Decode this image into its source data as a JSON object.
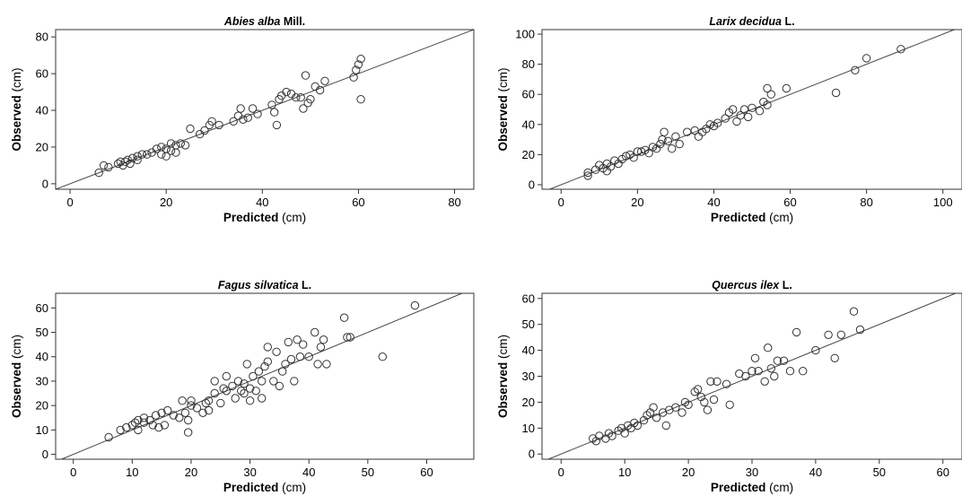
{
  "figure": {
    "panels": [
      {
        "title_species": "Abies alba",
        "title_authority": "Mill.",
        "xlabel_bold": "Predicted",
        "xlabel_unit": "(cm)",
        "ylabel_bold": "Observed",
        "ylabel_unit": "(cm)"
      },
      {
        "title_species": "Larix decidua",
        "title_authority": "L.",
        "xlabel_bold": "Predicted",
        "xlabel_unit": "(cm)",
        "ylabel_bold": "Observed",
        "ylabel_unit": "(cm)"
      },
      {
        "title_species": "Fagus silvatica",
        "title_authority": "L.",
        "xlabel_bold": "Predicted",
        "xlabel_unit": "(cm)",
        "ylabel_bold": "Observed",
        "ylabel_unit": "(cm)"
      },
      {
        "title_species": "Quercus ilex",
        "title_authority": "L.",
        "xlabel_bold": "Predicted",
        "xlabel_unit": "(cm)",
        "ylabel_bold": "Observed",
        "ylabel_unit": "(cm)"
      }
    ]
  },
  "chart_data": [
    {
      "type": "scatter",
      "title": "Abies alba Mill.",
      "xlabel": "Predicted (cm)",
      "ylabel": "Observed (cm)",
      "xlim": [
        -3,
        84
      ],
      "ylim": [
        -3,
        84
      ],
      "xticks": [
        0,
        20,
        40,
        60,
        80
      ],
      "yticks": [
        0,
        20,
        40,
        60,
        80
      ],
      "reference_line": "y = x",
      "grid": false,
      "points": [
        [
          6,
          6
        ],
        [
          7,
          10
        ],
        [
          8,
          9
        ],
        [
          10,
          11
        ],
        [
          10.5,
          12
        ],
        [
          11,
          10
        ],
        [
          11.5,
          12
        ],
        [
          12,
          13
        ],
        [
          12.5,
          11
        ],
        [
          13,
          14
        ],
        [
          14,
          15
        ],
        [
          14,
          13
        ],
        [
          15,
          16
        ],
        [
          16,
          16
        ],
        [
          17,
          17
        ],
        [
          18,
          19
        ],
        [
          19,
          20
        ],
        [
          19,
          16
        ],
        [
          20,
          19
        ],
        [
          20,
          15
        ],
        [
          21,
          18
        ],
        [
          21,
          22
        ],
        [
          22,
          21
        ],
        [
          22,
          17
        ],
        [
          23,
          22
        ],
        [
          24,
          21
        ],
        [
          25,
          30
        ],
        [
          27,
          27
        ],
        [
          28,
          29
        ],
        [
          29,
          32
        ],
        [
          29.5,
          34
        ],
        [
          31,
          32
        ],
        [
          34,
          34
        ],
        [
          35,
          37
        ],
        [
          35.5,
          41
        ],
        [
          36,
          35
        ],
        [
          37,
          36
        ],
        [
          38,
          41
        ],
        [
          39,
          38
        ],
        [
          42,
          43
        ],
        [
          42.5,
          39
        ],
        [
          43,
          32
        ],
        [
          43.5,
          46
        ],
        [
          44,
          48
        ],
        [
          45,
          50
        ],
        [
          46,
          49
        ],
        [
          47,
          47
        ],
        [
          48,
          47
        ],
        [
          48.5,
          41
        ],
        [
          49,
          59
        ],
        [
          49.5,
          44
        ],
        [
          50,
          46
        ],
        [
          51,
          53
        ],
        [
          52,
          51
        ],
        [
          53,
          56
        ],
        [
          59,
          58
        ],
        [
          59.5,
          62
        ],
        [
          60,
          65
        ],
        [
          60.5,
          68
        ],
        [
          60.5,
          46
        ]
      ]
    },
    {
      "type": "scatter",
      "title": "Larix decidua L.",
      "xlabel": "Predicted (cm)",
      "ylabel": "Observed (cm)",
      "xlim": [
        -5,
        105
      ],
      "ylim": [
        -3,
        103
      ],
      "xticks": [
        0,
        20,
        40,
        60,
        80,
        100
      ],
      "yticks": [
        0,
        20,
        40,
        60,
        80,
        100
      ],
      "reference_line": "y = x",
      "grid": false,
      "points": [
        [
          7,
          6
        ],
        [
          7,
          8
        ],
        [
          9,
          10
        ],
        [
          10,
          13
        ],
        [
          11,
          11
        ],
        [
          12,
          9
        ],
        [
          12,
          14
        ],
        [
          13,
          12
        ],
        [
          14,
          16
        ],
        [
          15,
          14
        ],
        [
          16,
          17
        ],
        [
          17,
          19
        ],
        [
          18,
          20
        ],
        [
          19,
          18
        ],
        [
          20,
          22
        ],
        [
          21,
          22
        ],
        [
          22,
          23
        ],
        [
          23,
          21
        ],
        [
          24,
          25
        ],
        [
          25,
          24
        ],
        [
          26,
          27
        ],
        [
          26.5,
          30
        ],
        [
          27,
          35
        ],
        [
          28,
          29
        ],
        [
          29,
          24
        ],
        [
          30,
          32
        ],
        [
          31,
          27
        ],
        [
          33,
          35
        ],
        [
          35,
          36
        ],
        [
          36,
          32
        ],
        [
          37,
          35
        ],
        [
          38,
          37
        ],
        [
          39,
          40
        ],
        [
          40,
          39
        ],
        [
          41,
          41
        ],
        [
          43,
          44
        ],
        [
          44,
          48
        ],
        [
          45,
          50
        ],
        [
          46,
          42
        ],
        [
          47,
          46
        ],
        [
          48,
          50
        ],
        [
          49,
          45
        ],
        [
          50,
          51
        ],
        [
          52,
          49
        ],
        [
          53,
          55
        ],
        [
          54,
          53
        ],
        [
          54,
          64
        ],
        [
          55,
          60
        ],
        [
          59,
          64
        ],
        [
          72,
          61
        ],
        [
          77,
          76
        ],
        [
          80,
          84
        ],
        [
          89,
          90
        ]
      ]
    },
    {
      "type": "scatter",
      "title": "Fagus silvatica L.",
      "xlabel": "Predicted (cm)",
      "ylabel": "Observed (cm)",
      "xlim": [
        -3,
        68
      ],
      "ylim": [
        -2,
        66
      ],
      "xticks": [
        0,
        10,
        20,
        30,
        40,
        50,
        60
      ],
      "yticks": [
        0,
        10,
        20,
        30,
        40,
        50,
        60
      ],
      "reference_line": "y = x",
      "grid": false,
      "points": [
        [
          6,
          7
        ],
        [
          8,
          10
        ],
        [
          9,
          11
        ],
        [
          10,
          12
        ],
        [
          10.5,
          13
        ],
        [
          11,
          10
        ],
        [
          11,
          14
        ],
        [
          12,
          13
        ],
        [
          12,
          15
        ],
        [
          13,
          14
        ],
        [
          13.5,
          12
        ],
        [
          14,
          16
        ],
        [
          14.5,
          11
        ],
        [
          15,
          17
        ],
        [
          15.5,
          12
        ],
        [
          16,
          18
        ],
        [
          17,
          16
        ],
        [
          18,
          15
        ],
        [
          18.5,
          22
        ],
        [
          19,
          17
        ],
        [
          19.5,
          14
        ],
        [
          19.5,
          9
        ],
        [
          20,
          20
        ],
        [
          20,
          22
        ],
        [
          21,
          19
        ],
        [
          22,
          17
        ],
        [
          22.5,
          21
        ],
        [
          23,
          18
        ],
        [
          23,
          22
        ],
        [
          24,
          25
        ],
        [
          24,
          30
        ],
        [
          25,
          21
        ],
        [
          25.5,
          27
        ],
        [
          26,
          26
        ],
        [
          26,
          32
        ],
        [
          27,
          28
        ],
        [
          27.5,
          23
        ],
        [
          28,
          30
        ],
        [
          28.5,
          26
        ],
        [
          29,
          25
        ],
        [
          29,
          29
        ],
        [
          29.5,
          37
        ],
        [
          30,
          22
        ],
        [
          30,
          27
        ],
        [
          30.5,
          32
        ],
        [
          31,
          26
        ],
        [
          31.5,
          34
        ],
        [
          32,
          23
        ],
        [
          32,
          30
        ],
        [
          32.5,
          36
        ],
        [
          33,
          38
        ],
        [
          33,
          44
        ],
        [
          34,
          30
        ],
        [
          34.5,
          42
        ],
        [
          35,
          28
        ],
        [
          35.5,
          34
        ],
        [
          36,
          37
        ],
        [
          36.5,
          46
        ],
        [
          37,
          39
        ],
        [
          37.5,
          30
        ],
        [
          38,
          47
        ],
        [
          38.5,
          40
        ],
        [
          39,
          45
        ],
        [
          40,
          40
        ],
        [
          41,
          50
        ],
        [
          41.5,
          37
        ],
        [
          42,
          44
        ],
        [
          42.5,
          47
        ],
        [
          43,
          37
        ],
        [
          46,
          56
        ],
        [
          46.5,
          48
        ],
        [
          47,
          48
        ],
        [
          52.5,
          40
        ],
        [
          58,
          61
        ]
      ]
    },
    {
      "type": "scatter",
      "title": "Quercus ilex L.",
      "xlabel": "Predicted (cm)",
      "ylabel": "Observed (cm)",
      "xlim": [
        -3,
        63
      ],
      "ylim": [
        -2,
        62
      ],
      "xticks": [
        0,
        10,
        20,
        30,
        40,
        50,
        60
      ],
      "yticks": [
        0,
        10,
        20,
        30,
        40,
        50,
        60
      ],
      "reference_line": "y = x",
      "grid": false,
      "points": [
        [
          5,
          6
        ],
        [
          5.5,
          5
        ],
        [
          6,
          7
        ],
        [
          7,
          6
        ],
        [
          7.5,
          8
        ],
        [
          8,
          7
        ],
        [
          9,
          9
        ],
        [
          9.5,
          10
        ],
        [
          10,
          8
        ],
        [
          10.5,
          11
        ],
        [
          11,
          10
        ],
        [
          11.5,
          12
        ],
        [
          12,
          11
        ],
        [
          13,
          13
        ],
        [
          13.5,
          15
        ],
        [
          14,
          16
        ],
        [
          14.5,
          18
        ],
        [
          15,
          14
        ],
        [
          16,
          16
        ],
        [
          16.5,
          11
        ],
        [
          17,
          17
        ],
        [
          18,
          18
        ],
        [
          19,
          16
        ],
        [
          19.5,
          20
        ],
        [
          20,
          19
        ],
        [
          21,
          24
        ],
        [
          21.5,
          25
        ],
        [
          22,
          22
        ],
        [
          22.5,
          20
        ],
        [
          23,
          17
        ],
        [
          23.5,
          28
        ],
        [
          24,
          21
        ],
        [
          24.5,
          28
        ],
        [
          26,
          27
        ],
        [
          26.5,
          19
        ],
        [
          28,
          31
        ],
        [
          29,
          30
        ],
        [
          30,
          32
        ],
        [
          30.5,
          37
        ],
        [
          31,
          32
        ],
        [
          32,
          28
        ],
        [
          32.5,
          41
        ],
        [
          33,
          33
        ],
        [
          33.5,
          30
        ],
        [
          34,
          36
        ],
        [
          35,
          36
        ],
        [
          36,
          32
        ],
        [
          37,
          47
        ],
        [
          38,
          32
        ],
        [
          40,
          40
        ],
        [
          42,
          46
        ],
        [
          43,
          37
        ],
        [
          44,
          46
        ],
        [
          46,
          55
        ],
        [
          47,
          48
        ]
      ]
    }
  ]
}
